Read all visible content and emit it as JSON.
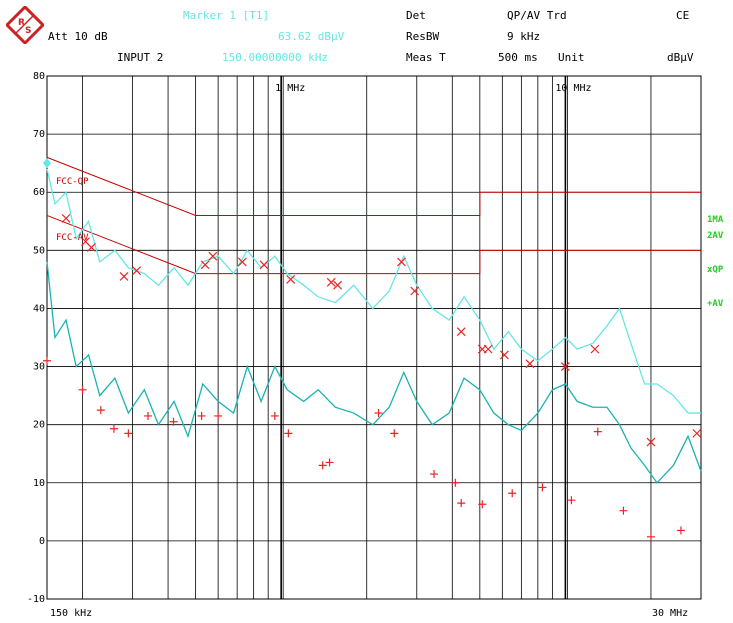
{
  "header": {
    "marker_title": "Marker 1 [T1]",
    "marker_value": "63.62 dBµV",
    "marker_freq": "150.00000000 kHz",
    "att": "Att 10 dB",
    "input": "INPUT 2",
    "det_label": "Det",
    "det_value": "QP/AV Trd",
    "ce": "CE",
    "resbw_label": "ResBW",
    "resbw_value": "9 kHz",
    "meas_label": "Meas T",
    "meas_value": "500 ms",
    "unit_label": "Unit",
    "unit_value": "dBµV"
  },
  "colors": {
    "grid": "#000000",
    "trace_qp": "#66e6e6",
    "trace_av": "#1ab3b3",
    "limit": "#cc0000",
    "marker": "#ee2222",
    "trace_label": "#22cc22"
  },
  "chart_data": {
    "type": "line",
    "xscale": "log",
    "xlim": [
      150000,
      30000000
    ],
    "ylim": [
      -10,
      80
    ],
    "x_tick_labels": [
      "150 kHz",
      "1 MHz",
      "10 MHz",
      "30 MHz"
    ],
    "y_ticks": [
      -10,
      0,
      10,
      20,
      30,
      40,
      50,
      60,
      70,
      80
    ],
    "trace_labels": [
      "1MA",
      "2AV",
      "xQP",
      "+AV"
    ],
    "limit_lines": [
      {
        "name": "FCC-QP",
        "points": [
          [
            150000,
            66
          ],
          [
            500000,
            56
          ],
          [
            5000000,
            56
          ],
          [
            5000000,
            60
          ],
          [
            30000000,
            60
          ]
        ]
      },
      {
        "name": "FCC-AV",
        "points": [
          [
            150000,
            56
          ],
          [
            500000,
            46
          ],
          [
            5000000,
            46
          ],
          [
            5000000,
            50
          ],
          [
            30000000,
            50
          ]
        ]
      }
    ],
    "series": [
      {
        "name": "1MA",
        "values": [
          [
            150000,
            64
          ],
          [
            160000,
            58
          ],
          [
            175000,
            60
          ],
          [
            190000,
            52
          ],
          [
            210000,
            55
          ],
          [
            230000,
            48
          ],
          [
            260000,
            50
          ],
          [
            290000,
            47
          ],
          [
            330000,
            46
          ],
          [
            370000,
            44
          ],
          [
            420000,
            47
          ],
          [
            470000,
            44
          ],
          [
            530000,
            48
          ],
          [
            600000,
            49
          ],
          [
            680000,
            46
          ],
          [
            760000,
            50
          ],
          [
            850000,
            47
          ],
          [
            950000,
            49
          ],
          [
            1050000,
            46
          ],
          [
            1200000,
            44
          ],
          [
            1350000,
            42
          ],
          [
            1550000,
            41
          ],
          [
            1800000,
            44
          ],
          [
            2100000,
            40
          ],
          [
            2400000,
            43
          ],
          [
            2700000,
            49
          ],
          [
            3000000,
            44
          ],
          [
            3400000,
            40
          ],
          [
            3900000,
            38
          ],
          [
            4400000,
            42
          ],
          [
            5000000,
            38
          ],
          [
            5600000,
            33
          ],
          [
            6300000,
            36
          ],
          [
            7000000,
            33
          ],
          [
            8000000,
            31
          ],
          [
            9000000,
            33
          ],
          [
            10000000,
            35
          ],
          [
            11000000,
            33
          ],
          [
            12500000,
            34
          ],
          [
            14000000,
            37
          ],
          [
            15500000,
            40
          ],
          [
            17000000,
            34
          ],
          [
            19000000,
            27
          ],
          [
            21000000,
            27
          ],
          [
            24000000,
            25
          ],
          [
            27000000,
            22
          ],
          [
            30000000,
            22
          ]
        ]
      },
      {
        "name": "2AV",
        "values": [
          [
            150000,
            48
          ],
          [
            160000,
            35
          ],
          [
            175000,
            38
          ],
          [
            190000,
            30
          ],
          [
            210000,
            32
          ],
          [
            230000,
            25
          ],
          [
            260000,
            28
          ],
          [
            290000,
            22
          ],
          [
            330000,
            26
          ],
          [
            370000,
            20
          ],
          [
            420000,
            24
          ],
          [
            470000,
            18
          ],
          [
            530000,
            27
          ],
          [
            600000,
            24
          ],
          [
            680000,
            22
          ],
          [
            760000,
            30
          ],
          [
            850000,
            24
          ],
          [
            950000,
            30
          ],
          [
            1050000,
            26
          ],
          [
            1200000,
            24
          ],
          [
            1350000,
            26
          ],
          [
            1550000,
            23
          ],
          [
            1800000,
            22
          ],
          [
            2100000,
            20
          ],
          [
            2400000,
            23
          ],
          [
            2700000,
            29
          ],
          [
            3000000,
            24
          ],
          [
            3400000,
            20
          ],
          [
            3900000,
            22
          ],
          [
            4400000,
            28
          ],
          [
            5000000,
            26
          ],
          [
            5600000,
            22
          ],
          [
            6300000,
            20
          ],
          [
            7000000,
            19
          ],
          [
            8000000,
            22
          ],
          [
            9000000,
            26
          ],
          [
            10000000,
            27
          ],
          [
            11000000,
            24
          ],
          [
            12500000,
            23
          ],
          [
            14000000,
            23
          ],
          [
            15500000,
            20
          ],
          [
            17000000,
            16
          ],
          [
            19000000,
            13
          ],
          [
            21000000,
            10
          ],
          [
            24000000,
            13
          ],
          [
            27000000,
            18
          ],
          [
            30000000,
            12
          ]
        ]
      }
    ],
    "markers_qp": [
      [
        175000,
        55.5
      ],
      [
        205000,
        51.5
      ],
      [
        215000,
        50.5
      ],
      [
        280000,
        45.5
      ],
      [
        310000,
        46.5
      ],
      [
        540000,
        47.5
      ],
      [
        575000,
        49.0
      ],
      [
        730000,
        48.0
      ],
      [
        870000,
        47.5
      ],
      [
        1080000,
        45.0
      ],
      [
        1500000,
        44.5
      ],
      [
        1580000,
        44.0
      ],
      [
        2650000,
        48.0
      ],
      [
        2950000,
        43.0
      ],
      [
        4300000,
        36.0
      ],
      [
        5100000,
        33.0
      ],
      [
        5350000,
        33.0
      ],
      [
        6100000,
        32.0
      ],
      [
        7500000,
        30.5
      ],
      [
        10000000,
        30.0
      ],
      [
        12700000,
        33.0
      ],
      [
        20000000,
        17.0
      ],
      [
        29000000,
        18.5
      ]
    ],
    "markers_av": [
      [
        150000,
        31
      ],
      [
        200000,
        26
      ],
      [
        232000,
        22.5
      ],
      [
        258000,
        19.3
      ],
      [
        290000,
        18.5
      ],
      [
        340000,
        21.5
      ],
      [
        418000,
        20.5
      ],
      [
        525000,
        21.5
      ],
      [
        600000,
        21.5
      ],
      [
        950000,
        21.5
      ],
      [
        1060000,
        18.5
      ],
      [
        1400000,
        13
      ],
      [
        1480000,
        13.5
      ],
      [
        2200000,
        22
      ],
      [
        2500000,
        18.5
      ],
      [
        3450000,
        11.5
      ],
      [
        4100000,
        10
      ],
      [
        4300000,
        6.5
      ],
      [
        5100000,
        6.3
      ],
      [
        6500000,
        8.2
      ],
      [
        8300000,
        9.2
      ],
      [
        10500000,
        7
      ],
      [
        13000000,
        18.8
      ],
      [
        16000000,
        5.2
      ],
      [
        20000000,
        0.7
      ],
      [
        25500000,
        1.8
      ]
    ],
    "annotations": [
      "FCC-QP",
      "FCC-AV"
    ]
  }
}
